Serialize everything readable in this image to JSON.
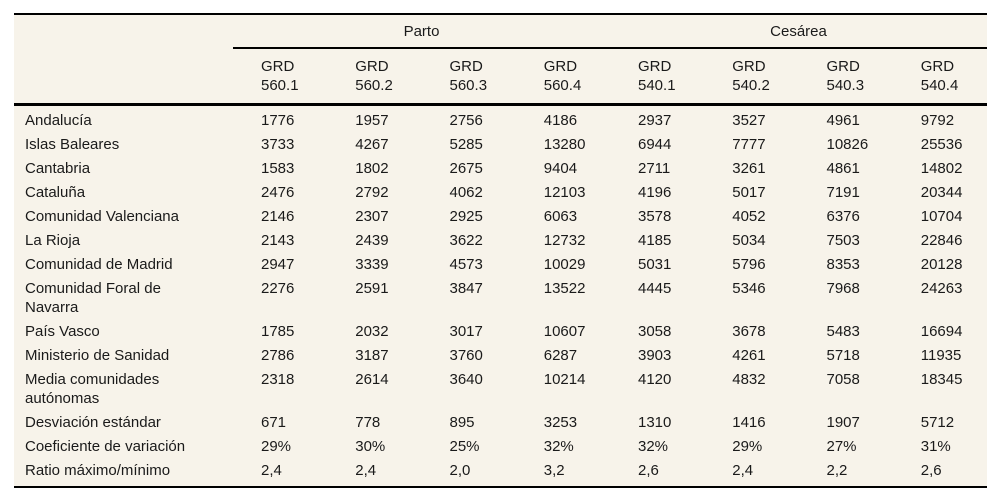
{
  "table": {
    "colors": {
      "table_background": "#f7f3ea",
      "text": "#1a1a1a",
      "rule_lines": "#000000"
    },
    "group_headers": [
      {
        "label": "Parto",
        "colspan": 4
      },
      {
        "label": "Cesárea",
        "colspan": 4
      }
    ],
    "columns": [
      {
        "line1": "GRD",
        "line2": "560.1"
      },
      {
        "line1": "GRD",
        "line2": "560.2"
      },
      {
        "line1": "GRD",
        "line2": "560.3"
      },
      {
        "line1": "GRD",
        "line2": "560.4"
      },
      {
        "line1": "GRD",
        "line2": "540.1"
      },
      {
        "line1": "GRD",
        "line2": "540.2"
      },
      {
        "line1": "GRD",
        "line2": "540.3"
      },
      {
        "line1": "GRD",
        "line2": "540.4"
      }
    ],
    "rows": [
      {
        "label": "Andalucía",
        "values": [
          "1776",
          "1957",
          "2756",
          "4186",
          "2937",
          "3527",
          "4961",
          "9792"
        ]
      },
      {
        "label": "Islas Baleares",
        "values": [
          "3733",
          "4267",
          "5285",
          "13280",
          "6944",
          "7777",
          "10826",
          "25536"
        ]
      },
      {
        "label": "Cantabria",
        "values": [
          "1583",
          "1802",
          "2675",
          "9404",
          "2711",
          "3261",
          "4861",
          "14802"
        ]
      },
      {
        "label": "Cataluña",
        "values": [
          "2476",
          "2792",
          "4062",
          "12103",
          "4196",
          "5017",
          "7191",
          "20344"
        ]
      },
      {
        "label": "Comunidad Valenciana",
        "values": [
          "2146",
          "2307",
          "2925",
          "6063",
          "3578",
          "4052",
          "6376",
          "10704"
        ]
      },
      {
        "label": "La Rioja",
        "values": [
          "2143",
          "2439",
          "3622",
          "12732",
          "4185",
          "5034",
          "7503",
          "22846"
        ]
      },
      {
        "label": "Comunidad de Madrid",
        "values": [
          "2947",
          "3339",
          "4573",
          "10029",
          "5031",
          "5796",
          "8353",
          "20128"
        ]
      },
      {
        "label": "Comunidad Foral de Navarra",
        "label_lines": [
          "Comunidad Foral de",
          "Navarra"
        ],
        "values": [
          "2276",
          "2591",
          "3847",
          "13522",
          "4445",
          "5346",
          "7968",
          "24263"
        ]
      },
      {
        "label": "País Vasco",
        "values": [
          "1785",
          "2032",
          "3017",
          "10607",
          "3058",
          "3678",
          "5483",
          "16694"
        ]
      },
      {
        "label": "Ministerio de Sanidad",
        "values": [
          "2786",
          "3187",
          "3760",
          "6287",
          "3903",
          "4261",
          "5718",
          "11935"
        ]
      },
      {
        "label": "Media comunidades autónomas",
        "label_lines": [
          "Media comunidades",
          "autónomas"
        ],
        "values": [
          "2318",
          "2614",
          "3640",
          "10214",
          "4120",
          "4832",
          "7058",
          "18345"
        ]
      },
      {
        "label": "Desviación estándar",
        "values": [
          "671",
          "778",
          "895",
          "3253",
          "1310",
          "1416",
          "1907",
          "5712"
        ]
      },
      {
        "label": "Coeficiente de variación",
        "values": [
          "29%",
          "30%",
          "25%",
          "32%",
          "32%",
          "29%",
          "27%",
          "31%"
        ]
      },
      {
        "label": "Ratio máximo/mínimo",
        "values": [
          "2,4",
          "2,4",
          "2,0",
          "3,2",
          "2,6",
          "2,4",
          "2,2",
          "2,6"
        ]
      }
    ]
  }
}
